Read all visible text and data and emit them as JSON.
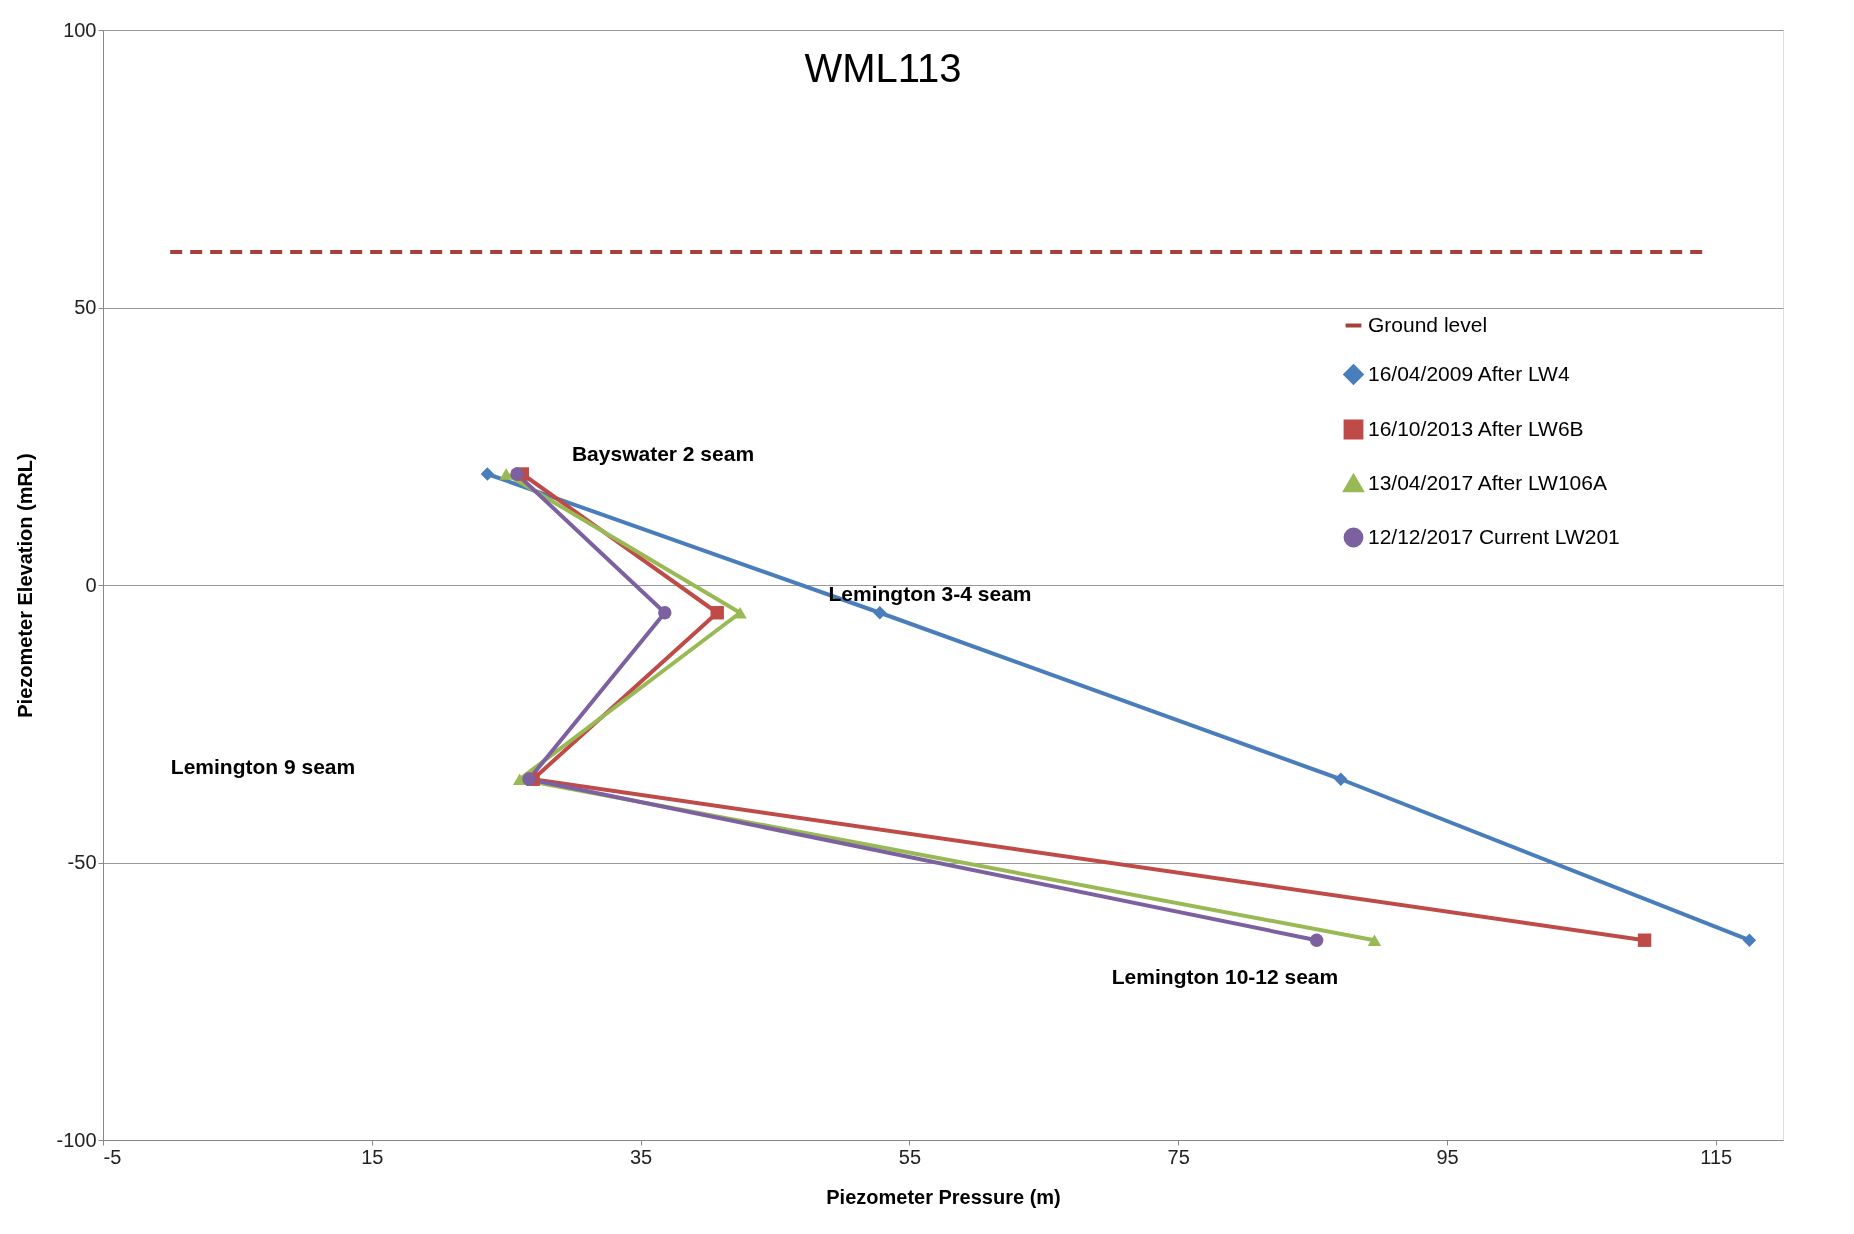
{
  "chart_data": {
    "type": "line",
    "title": "WML113",
    "xlabel": "Piezometer Pressure (m)",
    "ylabel": "Piezometer Elevation (mRL)",
    "xlim": [
      -5,
      120
    ],
    "xticks": [
      -5,
      15,
      35,
      55,
      75,
      95,
      115
    ],
    "ylim": [
      -100,
      100
    ],
    "yticks": [
      -100,
      -50,
      0,
      50,
      100
    ],
    "grid": "y",
    "legend": "right",
    "series": [
      {
        "name": "Ground level",
        "color": "#a5403a",
        "x": [
          0,
          114
        ],
        "values": [
          60,
          60
        ],
        "line_style": "dashed",
        "marker": "none"
      },
      {
        "name": "16/04/2009 After LW4",
        "color": "#4a7ebb",
        "x": [
          23.6,
          52.8,
          87.1,
          117.5
        ],
        "values": [
          20,
          -5,
          -35,
          -64
        ],
        "marker": "diamond"
      },
      {
        "name": "16/10/2013 After LW6B",
        "color": "#be4b48",
        "x": [
          26.2,
          40.7,
          27,
          109.7
        ],
        "values": [
          20,
          -5,
          -35,
          -64
        ],
        "marker": "square"
      },
      {
        "name": "13/04/2017 After LW106A",
        "color": "#98b954",
        "x": [
          25,
          42.4,
          26,
          89.6
        ],
        "values": [
          20,
          -5,
          -35,
          -64
        ],
        "marker": "triangle"
      },
      {
        "name": "12/12/2017 Current LW201",
        "color": "#7d60a0",
        "x": [
          25.8,
          36.8,
          26.7,
          85.3
        ],
        "values": [
          20,
          -5,
          -35,
          -64
        ],
        "marker": "circle"
      }
    ],
    "annotations": [
      "Bayswater 2 seam",
      "Lemington 3-4 seam",
      "Lemington 9 seam",
      "Lemington 10-12 seam"
    ]
  }
}
